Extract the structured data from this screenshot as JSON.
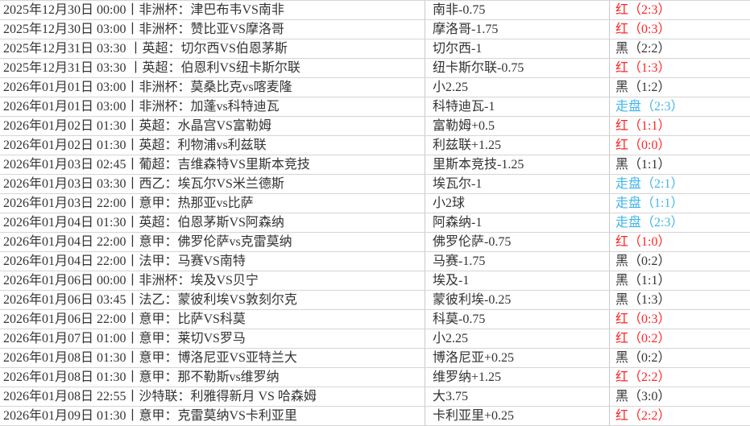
{
  "colors": {
    "win_red": "#ff2424",
    "lose_black": "#333333",
    "draw_blue": "#3fb6ea",
    "text": "#333333",
    "row_border": "#d5d5d5",
    "column_border": "#c9c9c9",
    "background": "#ffffff"
  },
  "table": {
    "rows": [
      {
        "match": "2025年12月30日 00:00丨非洲杯：津巴布韦VS南非",
        "handicap": "南非-0.75",
        "result": "红（2:3）",
        "status": "red"
      },
      {
        "match": "2025年12月30日 03:00丨非洲杯：赞比亚VS摩洛哥",
        "handicap": "摩洛哥-1.75",
        "result": "红（0:3）",
        "status": "red"
      },
      {
        "match": "2025年12月31日 03:30 丨英超：切尔西VS伯恩茅斯",
        "handicap": "切尔西-1",
        "result": "黑（2:2）",
        "status": "black"
      },
      {
        "match": "2025年12月31日 03:30 丨英超：伯恩利VS纽卡斯尔联",
        "handicap": "纽卡斯尔联-0.75",
        "result": "红（1:3）",
        "status": "red"
      },
      {
        "match": "2026年01月01日 03:00丨非洲杯：莫桑比克vs喀麦隆",
        "handicap": "小2.25",
        "result": "黑（1:2）",
        "status": "black"
      },
      {
        "match": "2026年01月01日 03:00丨非洲杯：加蓬vs科特迪瓦",
        "handicap": "科特迪瓦-1",
        "result": "走盘（2:3）",
        "status": "draw"
      },
      {
        "match": "2026年01月02日 01:30丨英超：水晶宫VS富勒姆",
        "handicap": "富勒姆+0.5",
        "result": "红（1:1）",
        "status": "red"
      },
      {
        "match": "2026年01月02日 01:30丨英超：利物浦vs利兹联",
        "handicap": "利兹联+1.25",
        "result": "红（0:0）",
        "status": "red"
      },
      {
        "match": "2026年01月03日 02:45丨葡超：吉维森特VS里斯本竞技",
        "handicap": "里斯本竞技-1.25",
        "result": "黑（1:1）",
        "status": "black"
      },
      {
        "match": "2026年01月03日 03:30丨西乙：埃瓦尔VS米兰德斯",
        "handicap": "埃瓦尔-1",
        "result": "走盘（2:1）",
        "status": "draw"
      },
      {
        "match": "2026年01月03日 22:00丨意甲：热那亚vs比萨",
        "handicap": "小2球",
        "result": "走盘（1:1）",
        "status": "draw"
      },
      {
        "match": "2026年01月04日 01:30丨英超：伯恩茅斯VS阿森纳",
        "handicap": "阿森纳-1",
        "result": "走盘（2:3）",
        "status": "draw"
      },
      {
        "match": "2026年01月04日 22:00丨意甲：佛罗伦萨vs克雷莫纳",
        "handicap": "佛罗伦萨-0.75",
        "result": "红（1:0）",
        "status": "red"
      },
      {
        "match": "2026年01月04日 22:00丨法甲：马赛VS南特",
        "handicap": "马赛-1.75",
        "result": "黑（0:2）",
        "status": "black"
      },
      {
        "match": "2026年01月06日 00:00丨非洲杯：埃及VS贝宁",
        "handicap": "埃及-1",
        "result": "黑（1:1）",
        "status": "black"
      },
      {
        "match": "2026年01月06日 03:45丨法乙：蒙彼利埃VS敦刻尔克",
        "handicap": "蒙彼利埃-0.25",
        "result": "黑（1:3）",
        "status": "black"
      },
      {
        "match": "2026年01月06日 22:00丨意甲：比萨VS科莫",
        "handicap": "科莫-0.75",
        "result": "红（0:3）",
        "status": "red"
      },
      {
        "match": "2026年01月07日 01:00丨意甲：莱切VS罗马",
        "handicap": "小2.25",
        "result": "红（0:2）",
        "status": "red"
      },
      {
        "match": "2026年01月08日 01:30丨意甲：博洛尼亚VS亚特兰大",
        "handicap": "博洛尼亚+0.25",
        "result": "黑（0:2）",
        "status": "black"
      },
      {
        "match": "2026年01月08日 01:30丨意甲：那不勒斯vs维罗纳",
        "handicap": "维罗纳+1.25",
        "result": "红（2:2）",
        "status": "red"
      },
      {
        "match": "2026年01月08日 22:55丨沙特联：利雅得新月 VS 哈森姆",
        "handicap": "大3.75",
        "result": "黑（3:0）",
        "status": "black"
      },
      {
        "match": "2026年01月09日 01:30丨意甲：克雷莫纳VS卡利亚里",
        "handicap": "卡利亚里+0.25",
        "result": "红（2:2）",
        "status": "red"
      }
    ]
  }
}
